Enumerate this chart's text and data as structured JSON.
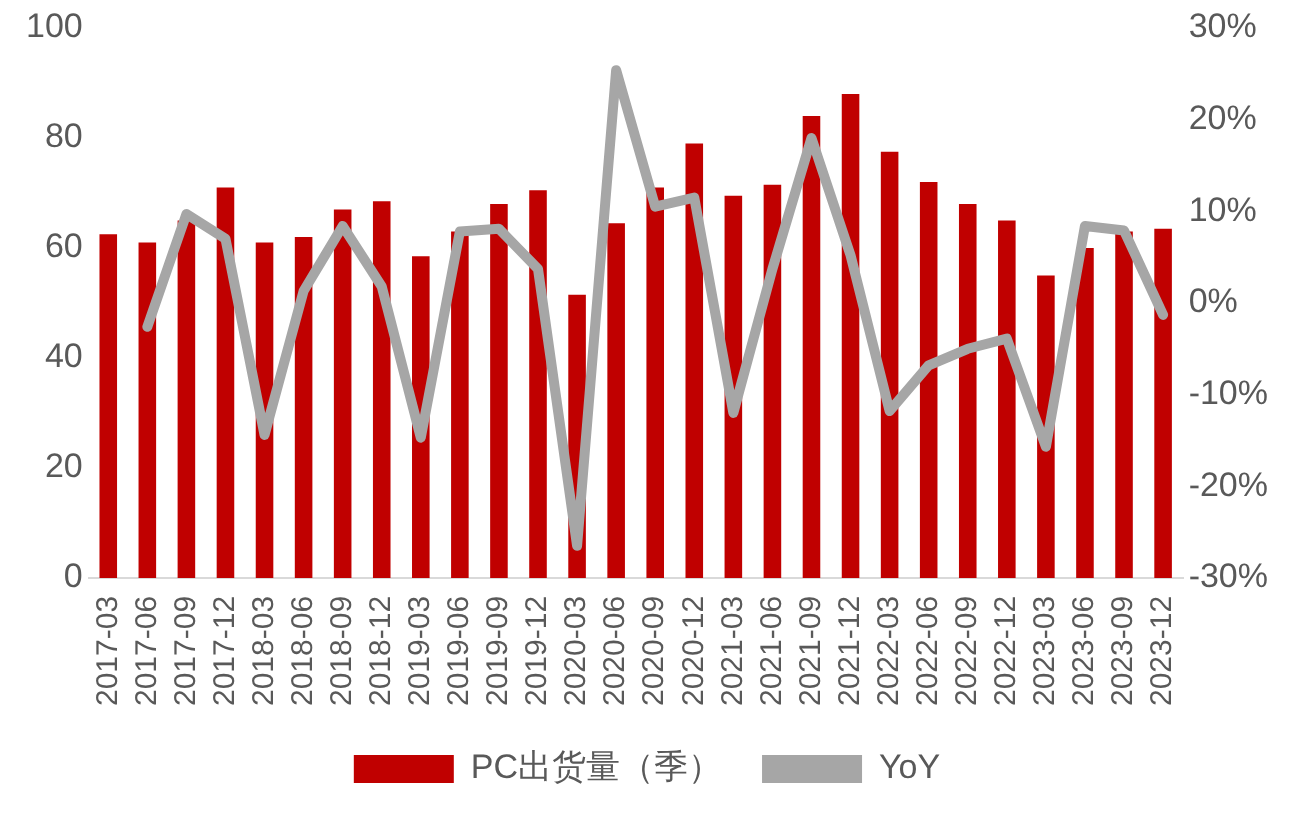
{
  "chart_data": {
    "type": "bar",
    "categories": [
      "2017-03",
      "2017-06",
      "2017-09",
      "2017-12",
      "2018-03",
      "2018-06",
      "2018-09",
      "2018-12",
      "2019-03",
      "2019-06",
      "2019-09",
      "2019-12",
      "2020-03",
      "2020-06",
      "2020-09",
      "2020-12",
      "2021-03",
      "2021-06",
      "2021-09",
      "2021-12",
      "2022-03",
      "2022-06",
      "2022-09",
      "2022-12",
      "2023-03",
      "2023-06",
      "2023-09",
      "2023-12"
    ],
    "series": [
      {
        "name": "PC出货量（季）",
        "color": "#c00000",
        "values": [
          62.5,
          61,
          65,
          71,
          61,
          62,
          67,
          68.5,
          58.5,
          63,
          68,
          70.5,
          51.5,
          64.5,
          71,
          79,
          69.5,
          71.5,
          84,
          88,
          77.5,
          72,
          68,
          65,
          55,
          60,
          63,
          63.5
        ]
      },
      {
        "name": "YoY",
        "type": "line",
        "axis": "y2",
        "color": "#a6a6a6",
        "values": [
          null,
          -2.6,
          9.7,
          7,
          -14.4,
          1.3,
          8.4,
          1.8,
          -14.7,
          7.8,
          8.1,
          3.7,
          -26.5,
          25.4,
          10.5,
          11.5,
          -12,
          3.7,
          18,
          5.2,
          -11.8,
          -6.8,
          -5,
          -3.9,
          -15.7,
          8.4,
          7.9,
          -1.3
        ]
      }
    ],
    "ylim": [
      0,
      100
    ],
    "yticks": [
      0,
      20,
      40,
      60,
      80,
      100
    ],
    "y2lim": [
      -30,
      30
    ],
    "y2ticks": [
      {
        "value": -30,
        "label": "-30%"
      },
      {
        "value": -20,
        "label": "-20%"
      },
      {
        "value": -10,
        "label": "-10%"
      },
      {
        "value": 0,
        "label": "0%"
      },
      {
        "value": 10,
        "label": "10%"
      },
      {
        "value": 20,
        "label": "20%"
      },
      {
        "value": 30,
        "label": "30%"
      }
    ],
    "grid": false,
    "legend": "bottom",
    "marker": "none",
    "line_style": "solid"
  }
}
